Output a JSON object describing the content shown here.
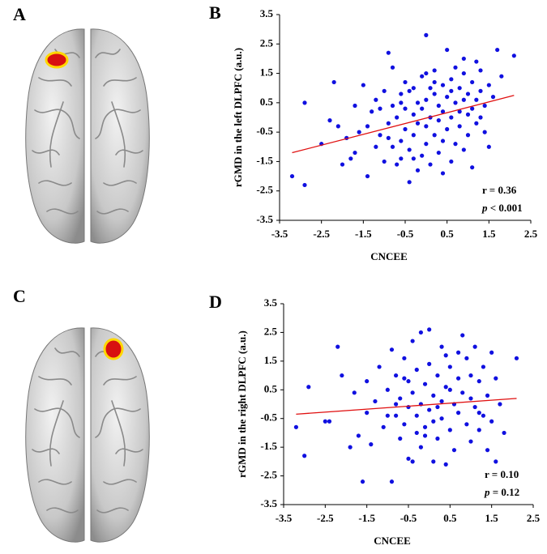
{
  "brain_panels": [
    {
      "label": "A"
    },
    {
      "label": "C"
    }
  ],
  "chart_data": [
    {
      "type": "scatter",
      "panel": "B",
      "xlabel": "CNCEE",
      "ylabel": "rGMD in the left DLPFC (a.u.)",
      "annotations": [
        "r = 0.36",
        "p < 0.001"
      ],
      "color": "#1010e0",
      "xlim": [
        -3.5,
        2.5
      ],
      "xticks": [
        -3.5,
        -2.5,
        -1.5,
        -0.5,
        0.5,
        1.5,
        2.5
      ],
      "ylim": [
        -3.5,
        3.5
      ],
      "yticks": [
        -3.5,
        -2.5,
        -1.5,
        -0.5,
        0.5,
        1.5,
        2.5,
        3.5
      ],
      "x": [
        -3.2,
        -2.9,
        -2.9,
        -2.2,
        -2.5,
        -2.0,
        -2.1,
        -1.9,
        -1.8,
        -1.7,
        -1.6,
        -1.5,
        -1.4,
        -1.4,
        -1.3,
        -1.2,
        -1.2,
        -1.1,
        -1.0,
        -1.0,
        -0.9,
        -0.9,
        -0.8,
        -0.8,
        -0.8,
        -0.7,
        -0.7,
        -0.6,
        -0.6,
        -0.6,
        -0.5,
        -0.5,
        -0.5,
        -0.4,
        -0.4,
        -0.4,
        -0.3,
        -0.3,
        -0.3,
        -0.2,
        -0.2,
        -0.2,
        -0.1,
        -0.1,
        -0.1,
        0.0,
        0.0,
        0.0,
        0.0,
        0.1,
        0.1,
        0.1,
        0.2,
        0.2,
        0.2,
        0.3,
        0.3,
        0.3,
        0.4,
        0.4,
        0.4,
        0.5,
        0.5,
        0.5,
        0.6,
        0.6,
        0.6,
        0.7,
        0.7,
        0.7,
        0.8,
        0.8,
        0.8,
        0.9,
        0.9,
        0.9,
        1.0,
        1.0,
        1.0,
        1.1,
        1.1,
        1.1,
        1.2,
        1.2,
        1.2,
        1.3,
        1.3,
        1.4,
        1.4,
        1.5,
        1.5,
        1.6,
        1.7,
        1.8,
        2.1,
        -2.3,
        -1.7,
        -1.1,
        -0.9,
        0.2,
        0.9,
        0.4,
        -0.3,
        1.3,
        0.6,
        -0.6,
        0.0
      ],
      "values": [
        -2.0,
        -2.3,
        0.5,
        1.2,
        -0.9,
        -1.6,
        -0.3,
        -0.7,
        -1.4,
        -1.2,
        -0.5,
        1.1,
        -2.0,
        -0.3,
        0.2,
        -1.0,
        0.6,
        -0.6,
        -1.5,
        0.9,
        2.2,
        -0.2,
        0.4,
        -1.0,
        1.7,
        -1.6,
        0.0,
        -0.8,
        0.8,
        -1.4,
        0.3,
        1.2,
        -0.4,
        -2.2,
        0.9,
        -1.1,
        0.1,
        -0.6,
        1.0,
        -1.8,
        0.5,
        -0.2,
        1.4,
        -1.3,
        0.3,
        -0.9,
        2.8,
        0.6,
        -0.3,
        -1.6,
        1.0,
        0.0,
        -0.6,
        0.8,
        1.6,
        -1.2,
        0.4,
        -0.1,
        1.1,
        -0.8,
        0.2,
        2.3,
        -0.4,
        0.7,
        -1.5,
        0.0,
        1.3,
        0.5,
        -0.9,
        1.7,
        0.2,
        -0.3,
        1.0,
        0.6,
        -1.1,
        1.5,
        0.1,
        0.8,
        -0.6,
        1.2,
        0.3,
        -1.7,
        0.6,
        -0.2,
        1.9,
        0.0,
        0.9,
        -0.5,
        0.4,
        1.1,
        -1.0,
        0.7,
        2.3,
        1.4,
        2.1,
        -0.1,
        0.4,
        0.3,
        -0.7,
        1.2,
        2.0,
        -1.9,
        -1.4,
        1.6,
        0.9,
        0.5,
        1.5
      ],
      "fit": {
        "x": [
          -3.2,
          2.1
        ],
        "y": [
          -1.2,
          0.75
        ],
        "color": "#e01010"
      }
    },
    {
      "type": "scatter",
      "panel": "D",
      "xlabel": "CNCEE",
      "ylabel": "rGMD in the right DLPFC (a.u.)",
      "annotations": [
        "r = 0.10",
        "p = 0.12"
      ],
      "color": "#1010e0",
      "xlim": [
        -3.5,
        2.5
      ],
      "xticks": [
        -3.5,
        -2.5,
        -1.5,
        -0.5,
        0.5,
        1.5,
        2.5
      ],
      "ylim": [
        -3.5,
        3.5
      ],
      "yticks": [
        -3.5,
        -2.5,
        -1.5,
        -0.5,
        0.5,
        1.5,
        2.5,
        3.5
      ],
      "x": [
        -3.2,
        -3.0,
        -2.9,
        -2.4,
        -2.2,
        -2.1,
        -1.9,
        -1.8,
        -1.7,
        -1.6,
        -1.5,
        -1.5,
        -1.4,
        -1.3,
        -1.2,
        -1.1,
        -1.0,
        -0.9,
        -0.9,
        -0.8,
        -0.8,
        -0.7,
        -0.7,
        -0.6,
        -0.6,
        -0.5,
        -0.5,
        -0.5,
        -0.4,
        -0.4,
        -0.4,
        -0.3,
        -0.3,
        -0.3,
        -0.2,
        -0.2,
        -0.2,
        -0.1,
        -0.1,
        0.0,
        0.0,
        0.0,
        0.1,
        0.1,
        0.1,
        0.2,
        0.2,
        0.3,
        0.3,
        0.3,
        0.4,
        0.4,
        0.5,
        0.5,
        0.6,
        0.6,
        0.7,
        0.7,
        0.8,
        0.8,
        0.9,
        0.9,
        1.0,
        1.0,
        1.1,
        1.1,
        1.2,
        1.2,
        1.3,
        1.3,
        1.4,
        1.4,
        1.5,
        1.5,
        1.6,
        1.6,
        1.7,
        1.8,
        2.1,
        -0.6,
        0.2,
        0.5,
        -1.0,
        1.0,
        -0.1,
        0.7,
        1.2,
        -2.5,
        0.4,
        -0.8
      ],
      "values": [
        -0.8,
        -1.8,
        0.6,
        -0.6,
        2.0,
        1.0,
        -1.5,
        0.4,
        -1.1,
        -2.7,
        0.8,
        -0.3,
        -1.4,
        0.1,
        1.3,
        -0.8,
        0.5,
        -2.7,
        1.9,
        -0.4,
        1.0,
        -1.2,
        0.2,
        1.6,
        -0.7,
        0.8,
        -1.9,
        -0.1,
        2.2,
        -2.0,
        0.4,
        -1.0,
        1.2,
        -0.4,
        2.5,
        0.0,
        -1.5,
        0.7,
        -0.8,
        2.6,
        -0.2,
        1.4,
        -2.0,
        0.3,
        -0.6,
        1.0,
        -1.2,
        0.1,
        2.0,
        -0.5,
        -2.1,
        0.6,
        -0.9,
        1.3,
        0.0,
        -1.6,
        0.9,
        -0.3,
        2.4,
        0.4,
        -0.7,
        1.6,
        -1.3,
        0.2,
        2.0,
        -0.1,
        0.8,
        -0.9,
        1.3,
        -0.4,
        0.3,
        -1.6,
        1.8,
        -0.6,
        -2.0,
        0.9,
        0.0,
        -1.0,
        1.6,
        0.9,
        -0.1,
        0.5,
        -0.4,
        1.0,
        -1.1,
        1.8,
        -0.3,
        -0.6,
        1.7,
        0.0
      ],
      "fit": {
        "x": [
          -3.2,
          2.1
        ],
        "y": [
          -0.35,
          0.2
        ],
        "color": "#e01010"
      }
    }
  ]
}
